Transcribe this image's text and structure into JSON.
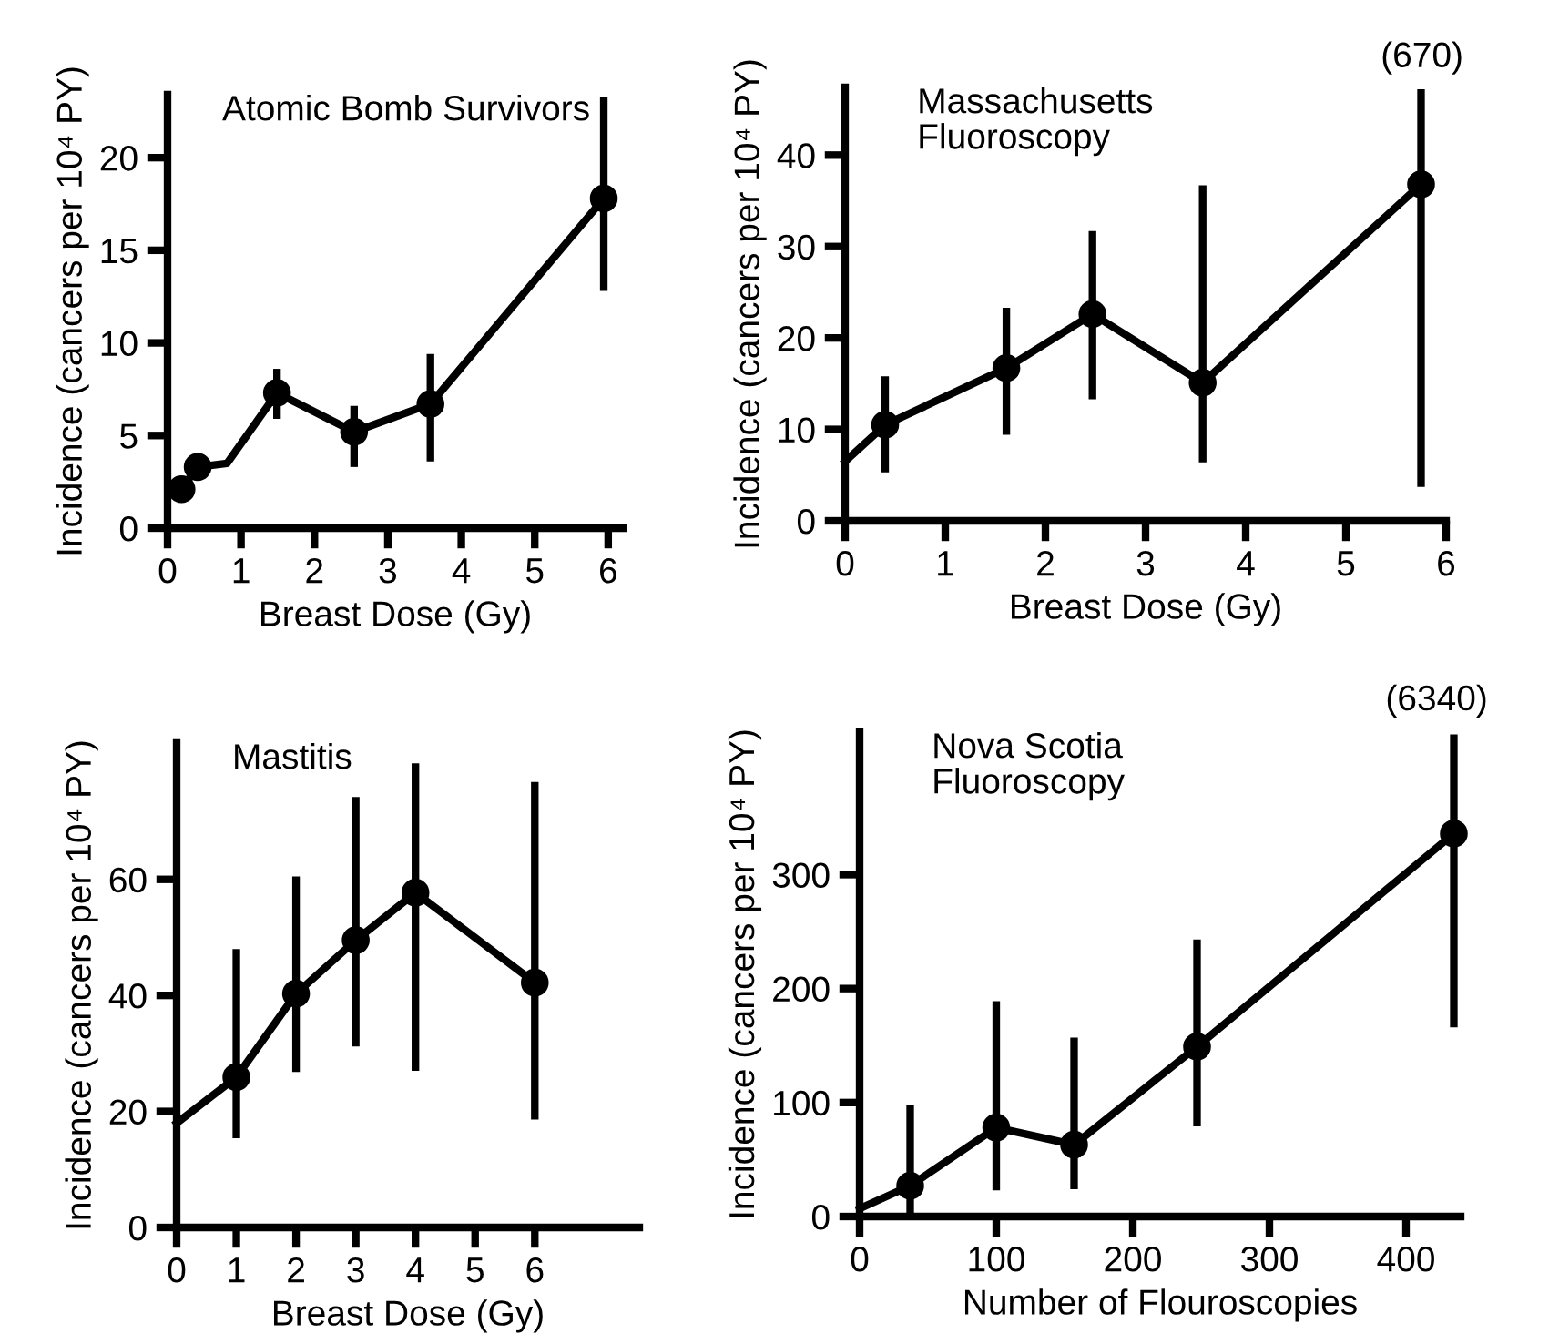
{
  "chart_data": [
    {
      "type": "line",
      "title": "Atomic Bomb Survivors",
      "xlabel": "Breast Dose (Gy)",
      "ylabel": "Incidence (cancers per 10⁴ PY)",
      "xlim": [
        0,
        6.2
      ],
      "ylim": [
        0,
        23.4
      ],
      "xticks": [
        0,
        1,
        2,
        3,
        4,
        5,
        6
      ],
      "yticks": [
        0,
        5,
        10,
        15,
        20
      ],
      "series": [
        {
          "type": "line",
          "color": "#000000",
          "marker": "none",
          "x": [
            0.19,
            0.41,
            0.81,
            1.49,
            2.54,
            3.58,
            5.94
          ],
          "values": [
            2.1,
            3.3,
            3.5,
            7.3,
            5.2,
            6.7,
            17.8
          ]
        },
        {
          "type": "scatter",
          "color": "#000000",
          "marker": "circle",
          "x": [
            0.19,
            0.41,
            1.49,
            2.54,
            3.58,
            5.94
          ],
          "values": [
            2.1,
            3.3,
            7.3,
            5.2,
            6.7,
            17.8
          ],
          "errors": [
            null,
            null,
            [
              5.9,
              8.6
            ],
            [
              3.3,
              6.6
            ],
            [
              3.6,
              9.4
            ],
            [
              12.8,
              23.3
            ]
          ]
        }
      ]
    },
    {
      "type": "line",
      "title": "Massachusetts\nFluoroscopy",
      "xlabel": "Breast Dose (Gy)",
      "ylabel": "Incidence (cancers per 10⁴ PY)",
      "xlim": [
        0,
        6
      ],
      "ylim": [
        0,
        47.4
      ],
      "xticks": [
        0,
        1,
        2,
        3,
        4,
        5,
        6
      ],
      "yticks": [
        0,
        10,
        20,
        30,
        40
      ],
      "annotations": [
        "(670)"
      ],
      "series": [
        {
          "type": "line",
          "color": "#000000",
          "marker": "none",
          "x": [
            0,
            0.4,
            1.61,
            2.47,
            3.57,
            5.75
          ],
          "values": [
            6.5,
            10.5,
            16.7,
            22.6,
            15.1,
            36.8
          ]
        },
        {
          "type": "scatter",
          "color": "#000000",
          "marker": "circle",
          "x": [
            0.4,
            1.61,
            2.47,
            3.57,
            5.75
          ],
          "values": [
            10.5,
            16.7,
            22.6,
            15.1,
            36.8
          ],
          "errors": [
            [
              5.3,
              15.8
            ],
            [
              9.4,
              23.3
            ],
            [
              13.3,
              31.7
            ],
            [
              6.4,
              36.7
            ],
            [
              3.7,
              47.2
            ]
          ]
        }
      ]
    },
    {
      "type": "line",
      "title": "Mastitis",
      "xlabel": "Breast Dose (Gy)",
      "ylabel": "Incidence (cancers per 10⁴ PY)",
      "xlim": [
        0,
        7.75
      ],
      "ylim": [
        0,
        83.5
      ],
      "xticks": [
        0,
        1,
        2,
        3,
        4,
        5,
        6
      ],
      "yticks": [
        0,
        20,
        40,
        60
      ],
      "series": [
        {
          "type": "line",
          "color": "#000000",
          "marker": "none",
          "x": [
            0,
            1,
            2,
            3,
            4,
            6
          ],
          "values": [
            18,
            25.9,
            40.3,
            49.5,
            57.7,
            42.2
          ]
        },
        {
          "type": "scatter",
          "color": "#000000",
          "marker": "circle",
          "x": [
            1,
            2,
            3,
            4,
            6
          ],
          "values": [
            25.9,
            40.3,
            49.5,
            57.7,
            42.2
          ],
          "errors": [
            [
              15.4,
              48
            ],
            [
              26.8,
              60.5
            ],
            [
              31.2,
              74.2
            ],
            [
              27,
              80
            ],
            [
              18.6,
              76.8
            ]
          ]
        }
      ]
    },
    {
      "type": "line",
      "title": "Nova Scotia\nFluoroscopy",
      "xlabel": "Number of Flouroscopies",
      "ylabel": "Incidence (cancers per 10⁴ PY)",
      "xlim": [
        0,
        440
      ],
      "ylim": [
        0,
        425
      ],
      "xticks": [
        0,
        100,
        200,
        300,
        400
      ],
      "yticks": [
        0,
        100,
        200,
        300
      ],
      "annotations": [
        "(6340)"
      ],
      "series": [
        {
          "type": "line",
          "color": "#000000",
          "marker": "none",
          "x": [
            0,
            37,
            100,
            157,
            247,
            435
          ],
          "values": [
            7,
            27,
            78,
            63,
            149,
            336
          ]
        },
        {
          "type": "scatter",
          "color": "#000000",
          "marker": "circle",
          "x": [
            37,
            100,
            157,
            247,
            435
          ],
          "values": [
            27,
            78,
            63,
            149,
            336
          ],
          "errors": [
            [
              2,
              98
            ],
            [
              23,
              189
            ],
            [
              24,
              157
            ],
            [
              79,
              243
            ],
            [
              166,
              423
            ]
          ]
        }
      ]
    }
  ]
}
